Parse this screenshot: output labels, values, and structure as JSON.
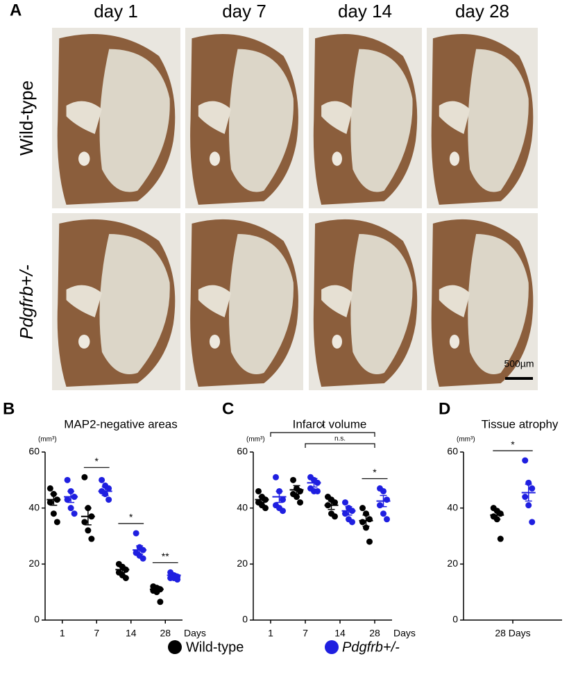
{
  "figure_a": {
    "label": "A",
    "columns": [
      "day 1",
      "day 7",
      "day 14",
      "day 28"
    ],
    "rows": [
      "Wild-type",
      "Pdgfrb+/-"
    ],
    "scale_bar": "500µm"
  },
  "legend": [
    {
      "name": "Wild-type",
      "color": "#000000"
    },
    {
      "name": "Pdgfrb+/-",
      "color": "#1f1fe0"
    }
  ],
  "chart_data": [
    {
      "type": "scatter",
      "label": "B",
      "title": "MAP2-negative areas",
      "unit": "(mm³)",
      "categories": [
        "1",
        "7",
        "14",
        "28"
      ],
      "x_label": "Days",
      "ylim": [
        0,
        60
      ],
      "yticks": [
        0,
        20,
        40,
        60
      ],
      "series": [
        {
          "values": [
            [
              47,
              45,
              43,
              42,
              38,
              35
            ],
            [
              51,
              40,
              37,
              35,
              32,
              29
            ],
            [
              20,
              19,
              18,
              17,
              16,
              15
            ],
            [
              12,
              11.5,
              11,
              10.5,
              10,
              6.5
            ]
          ],
          "mean": [
            43,
            37,
            18,
            11
          ],
          "sem": [
            2,
            3,
            1,
            1
          ]
        },
        {
          "values": [
            [
              50,
              46,
              44,
              43,
              40,
              38
            ],
            [
              50,
              48,
              47,
              46,
              45,
              43
            ],
            [
              31,
              26,
              25,
              24,
              23,
              22
            ],
            [
              17,
              16,
              15.5,
              15,
              15,
              14.5
            ]
          ],
          "mean": [
            44,
            46,
            25,
            16
          ],
          "sem": [
            2,
            1.5,
            1.5,
            0.5
          ]
        }
      ],
      "annotations": [
        {
          "text": "*",
          "category": 1
        },
        {
          "text": "*",
          "category": 2
        },
        {
          "text": "**",
          "category": 3
        }
      ]
    },
    {
      "type": "scatter",
      "label": "C",
      "title": "Infarct volume",
      "unit": "(mm³)",
      "categories": [
        "1",
        "7",
        "14",
        "28"
      ],
      "x_label": "Days",
      "ylim": [
        0,
        60
      ],
      "yticks": [
        0,
        20,
        40,
        60
      ],
      "series": [
        {
          "values": [
            [
              46,
              44,
              43,
              42,
              41,
              40
            ],
            [
              50,
              47,
              46,
              45,
              44,
              42
            ],
            [
              44,
              43,
              42,
              41,
              38,
              37
            ],
            [
              40,
              38,
              36,
              35,
              33,
              28
            ]
          ],
          "mean": [
            43,
            46.5,
            41,
            35.5
          ],
          "sem": [
            1,
            1.5,
            1.5,
            2
          ]
        },
        {
          "values": [
            [
              51,
              46,
              43,
              41,
              40,
              39
            ],
            [
              51,
              50,
              49,
              47,
              46,
              46
            ],
            [
              42,
              40,
              39,
              38,
              36,
              35
            ],
            [
              47,
              46,
              43,
              41,
              38,
              36
            ]
          ],
          "mean": [
            44,
            49,
            39,
            42.5
          ],
          "sem": [
            2,
            1.5,
            1.5,
            2
          ]
        }
      ],
      "annotations": [
        {
          "text": "*",
          "from": 0,
          "to": 3
        },
        {
          "text": "n.s.",
          "from": 1,
          "to": 3
        },
        {
          "text": "*",
          "category": 3
        }
      ]
    },
    {
      "type": "scatter",
      "label": "D",
      "title": "Tissue atrophy",
      "unit": "(mm³)",
      "categories": [
        "28 Days"
      ],
      "ylim": [
        0,
        60
      ],
      "yticks": [
        0,
        20,
        40,
        60
      ],
      "series": [
        {
          "values": [
            [
              40,
              39,
              38,
              37,
              36,
              29
            ]
          ],
          "mean": [
            37.5
          ],
          "sem": [
            1.5
          ]
        },
        {
          "values": [
            [
              57,
              49,
              47,
              44,
              41,
              35
            ]
          ],
          "mean": [
            45.5
          ],
          "sem": [
            3
          ]
        }
      ],
      "annotations": [
        {
          "text": "*",
          "category": 0
        }
      ]
    }
  ]
}
